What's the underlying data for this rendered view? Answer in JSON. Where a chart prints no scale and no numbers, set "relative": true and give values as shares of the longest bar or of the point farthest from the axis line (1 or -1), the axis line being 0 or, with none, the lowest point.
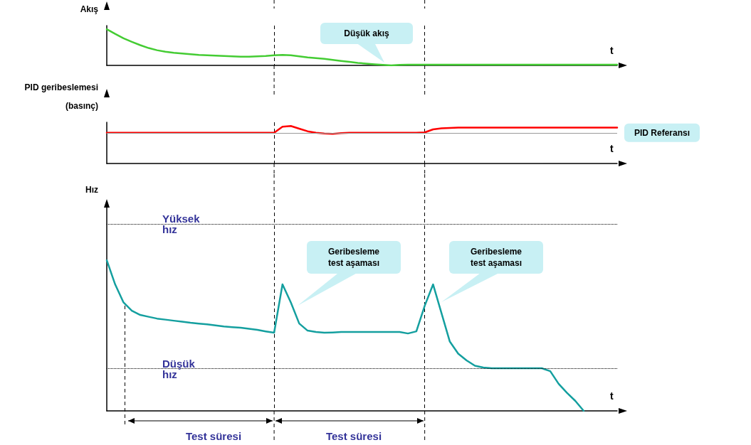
{
  "chart_data": [
    {
      "type": "line",
      "ylabel": "Akış",
      "xlabel": "t",
      "relative": true,
      "grid": "x",
      "marker": "none",
      "line_style": "solid",
      "categories": [
        null,
        null,
        null,
        null,
        null,
        null,
        null,
        null,
        null,
        null,
        null,
        null,
        null,
        null,
        null,
        null,
        null,
        null,
        null,
        null,
        null,
        null,
        null,
        null,
        null,
        null,
        null,
        null,
        null,
        null,
        null,
        null,
        null,
        null,
        null,
        null,
        null,
        null,
        null,
        null,
        null,
        null,
        null,
        null,
        null,
        null,
        null,
        null,
        null,
        null,
        null,
        null,
        null,
        null,
        null,
        null,
        null,
        null,
        null,
        null,
        null,
        null
      ],
      "series": [
        {
          "color": "#44cc33",
          "values": [
            1.0,
            0.87,
            0.75,
            0.65,
            0.56,
            0.48,
            0.42,
            0.38,
            0.35,
            0.33,
            0.31,
            0.29,
            0.28,
            0.27,
            0.26,
            0.25,
            0.24,
            0.24,
            0.25,
            0.26,
            0.28,
            0.29,
            0.28,
            0.25,
            0.22,
            0.2,
            0.18,
            0.15,
            0.125,
            0.1,
            0.07,
            0.05,
            0.03,
            0.015,
            0.0,
            0.015,
            0.02,
            0.02,
            0.02,
            0.02,
            0.02,
            0.02,
            0.02,
            0.02,
            0.02,
            0.02,
            0.02,
            0.02,
            0.02,
            0.02,
            0.02,
            0.02,
            0.02,
            0.02,
            0.02,
            0.02,
            0.02,
            0.02,
            0.02,
            0.02,
            0.02,
            0.02
          ]
        }
      ],
      "annotations": [
        "Düşük akış"
      ]
    },
    {
      "type": "line",
      "ylabel": "PID geribeslemesi\n(basınç)",
      "xlabel": "t",
      "relative": true,
      "grid": "x",
      "marker": "none",
      "line_style": "solid",
      "categories": [
        null,
        null,
        null,
        null,
        null,
        null,
        null,
        null,
        null,
        null,
        null,
        null,
        null,
        null,
        null,
        null,
        null,
        null,
        null,
        null,
        null,
        null,
        null,
        null,
        null,
        null,
        null,
        null,
        null,
        null,
        null,
        null,
        null,
        null,
        null,
        null,
        null,
        null,
        null,
        null,
        null,
        null,
        null,
        null,
        null,
        null,
        null,
        null,
        null,
        null,
        null,
        null,
        null,
        null,
        null,
        null,
        null,
        null,
        null,
        null,
        null,
        null
      ],
      "series": [
        {
          "color": "#ff0000",
          "values": [
            0.82,
            0.82,
            0.82,
            0.82,
            0.82,
            0.82,
            0.82,
            0.82,
            0.82,
            0.82,
            0.82,
            0.82,
            0.82,
            0.82,
            0.82,
            0.82,
            0.82,
            0.82,
            0.82,
            0.82,
            0.82,
            0.98,
            1.0,
            0.93,
            0.86,
            0.82,
            0.8,
            0.79,
            0.81,
            0.82,
            0.82,
            0.82,
            0.82,
            0.82,
            0.82,
            0.82,
            0.82,
            0.82,
            0.83,
            0.91,
            0.94,
            0.95,
            0.96,
            0.96,
            0.96,
            0.96,
            0.96,
            0.96,
            0.96,
            0.96,
            0.96,
            0.96,
            0.96,
            0.96,
            0.96,
            0.96,
            0.96,
            0.96,
            0.96,
            0.96,
            0.96,
            0.96
          ]
        }
      ],
      "ref_lines": [
        {
          "axis": "y",
          "value": 0.82,
          "label": "PID Referansı",
          "color": "#999999",
          "line_style": "solid"
        }
      ]
    },
    {
      "type": "line",
      "ylabel": "Hız",
      "xlabel": "t",
      "relative": true,
      "grid": "x",
      "marker": "none",
      "line_style": "solid",
      "categories": [
        null,
        null,
        null,
        null,
        null,
        null,
        null,
        null,
        null,
        null,
        null,
        null,
        null,
        null,
        null,
        null,
        null,
        null,
        null,
        null,
        null,
        null,
        null,
        null,
        null,
        null,
        null,
        null,
        null,
        null,
        null,
        null,
        null,
        null,
        null,
        null,
        null,
        null,
        null,
        null,
        null,
        null,
        null,
        null,
        null,
        null,
        null,
        null,
        null,
        null,
        null,
        null,
        null,
        null,
        null,
        null,
        null,
        null,
        null,
        null,
        null,
        null
      ],
      "series": [
        {
          "color": "#149f9f",
          "values": [
            1.0,
            0.84,
            0.72,
            0.665,
            0.637,
            0.625,
            0.613,
            0.606,
            0.599,
            0.592,
            0.585,
            0.58,
            0.575,
            0.568,
            0.561,
            0.556,
            0.552,
            0.545,
            0.538,
            0.528,
            0.519,
            0.84,
            0.72,
            0.58,
            0.533,
            0.524,
            0.519,
            0.521,
            0.524,
            0.524,
            0.524,
            0.524,
            0.524,
            0.524,
            0.524,
            0.524,
            0.514,
            0.528,
            0.698,
            0.84,
            0.65,
            0.46,
            0.38,
            0.335,
            0.3,
            0.288,
            0.283,
            0.283,
            0.283,
            0.283,
            0.283,
            0.283,
            0.283,
            0.264,
            0.18,
            0.12,
            0.066,
            0.0,
            null,
            null,
            null,
            null
          ]
        }
      ],
      "ref_lines": [
        {
          "axis": "y",
          "value": 1.236,
          "label": "Yüksek\nhız",
          "color": "#000000",
          "line_style": "dotted"
        },
        {
          "axis": "y",
          "value": 0.283,
          "label": "Düşük\nhız",
          "color": "#000000",
          "line_style": "dotted"
        }
      ],
      "annotations": [
        "Geribesleme\ntest aşaması",
        "Geribesleme\ntest aşaması",
        "Test süresi",
        "Test süresi"
      ]
    }
  ]
}
